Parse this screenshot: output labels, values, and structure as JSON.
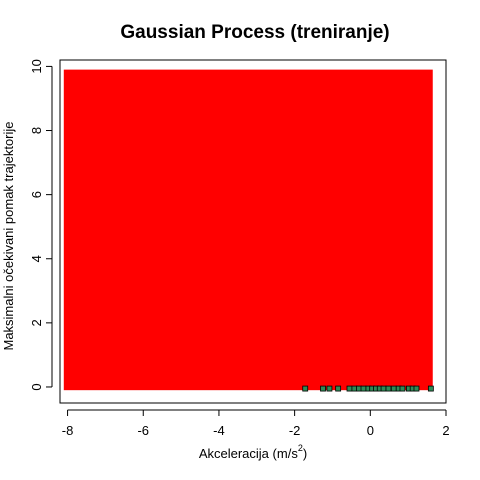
{
  "chart_data": {
    "type": "scatter",
    "title": "Gaussian Process (treniranje)",
    "xlabel": {
      "prefix": "Akceleracija (",
      "unit_base": "m",
      "unit_sep": "/",
      "unit_denom": "s",
      "unit_exp": "2",
      "suffix": ")"
    },
    "ylabel": "Maksimalni očekivani pomak trajektorije",
    "xlim": [
      -8.2,
      2.0
    ],
    "ylim": [
      -0.5,
      10.2
    ],
    "x_ticks": [
      -8,
      -6,
      -4,
      -2,
      0,
      2
    ],
    "y_ticks": [
      0,
      2,
      4,
      6,
      8,
      10
    ],
    "region": {
      "x": [
        -8.1,
        1.65
      ],
      "y": [
        -0.1,
        9.9
      ],
      "color": "#ff0000"
    },
    "points": {
      "color": "#2e8b57",
      "edge": "#000000",
      "x": [
        -1.72,
        -1.25,
        -1.08,
        -0.85,
        -0.55,
        -0.42,
        -0.3,
        -0.18,
        -0.05,
        0.05,
        0.15,
        0.25,
        0.35,
        0.48,
        0.62,
        0.75,
        0.85,
        1.02,
        1.12,
        1.22,
        1.6
      ],
      "y": [
        -0.05,
        -0.05,
        -0.05,
        -0.05,
        -0.05,
        -0.05,
        -0.05,
        -0.05,
        -0.05,
        -0.05,
        -0.05,
        -0.05,
        -0.05,
        -0.05,
        -0.05,
        -0.05,
        -0.05,
        -0.05,
        -0.05,
        -0.05,
        -0.05
      ]
    }
  }
}
